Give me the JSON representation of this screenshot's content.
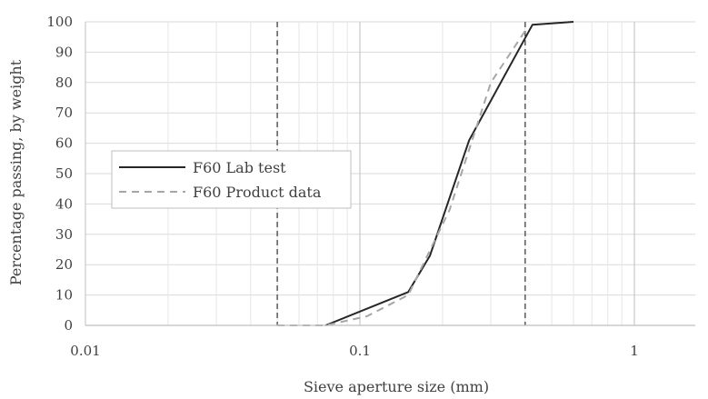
{
  "chart_data": {
    "type": "line",
    "x_scale": "log",
    "xlabel": "Sieve aperture size (mm)",
    "ylabel": "Percentage passing, by weight",
    "xlim": [
      0.01,
      2
    ],
    "ylim": [
      0,
      100
    ],
    "x_ticks": [
      0.01,
      0.1,
      1
    ],
    "x_tick_labels": [
      "0.01",
      "0.1",
      "1"
    ],
    "y_ticks": [
      0,
      10,
      20,
      30,
      40,
      50,
      60,
      70,
      80,
      90,
      100
    ],
    "y_tick_labels": [
      "0",
      "10",
      "20",
      "30",
      "40",
      "50",
      "60",
      "70",
      "80",
      "90",
      "100"
    ],
    "grid": "major and minor vertical, major horizontal",
    "legend_position": "middle-left",
    "series": [
      {
        "name": "F60 Lab test",
        "style": "solid",
        "color": "#262626",
        "x": [
          0.075,
          0.15,
          0.18,
          0.25,
          0.425,
          0.6
        ],
        "y": [
          0,
          11,
          23,
          61,
          99,
          100
        ]
      },
      {
        "name": "F60 Product data",
        "style": "dashed",
        "color": "#a6a6a6",
        "x": [
          0.05,
          0.075,
          0.106,
          0.15,
          0.212,
          0.3,
          0.4
        ],
        "y": [
          0,
          0,
          3,
          10,
          38,
          80,
          97
        ]
      }
    ],
    "reference_lines": [
      {
        "orientation": "vertical",
        "x": 0.05,
        "style": "dashed",
        "color": "#595959"
      },
      {
        "orientation": "vertical",
        "x": 0.4,
        "style": "dashed",
        "color": "#595959"
      }
    ]
  }
}
